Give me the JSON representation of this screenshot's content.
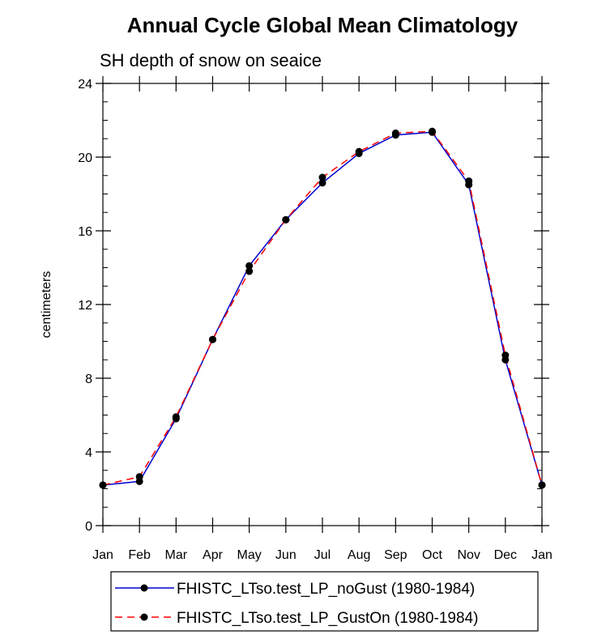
{
  "chart_data": {
    "type": "line",
    "title": "Annual Cycle Global Mean Climatology",
    "subtitle": "SH depth of snow on seaice",
    "xlabel": "",
    "ylabel": "centimeters",
    "categories": [
      "Jan",
      "Feb",
      "Mar",
      "Apr",
      "May",
      "Jun",
      "Jul",
      "Aug",
      "Sep",
      "Oct",
      "Nov",
      "Dec",
      "Jan"
    ],
    "ylim": [
      0,
      24
    ],
    "yticks": [
      "0",
      "4",
      "8",
      "12",
      "16",
      "20",
      "24"
    ],
    "legend_position": "bottom",
    "series": [
      {
        "name": "FHISTC_LTso.test_LP_noGust (1980-1984)",
        "color": "#0000cc",
        "style": "solid",
        "values": [
          2.2,
          2.4,
          5.8,
          10.1,
          14.1,
          16.6,
          18.6,
          20.2,
          21.2,
          21.35,
          18.5,
          9.0,
          2.2
        ]
      },
      {
        "name": "FHISTC_LTso.test_LP_GustOn (1980-1984)",
        "color": "#ff0000",
        "style": "dashed",
        "values": [
          2.2,
          2.65,
          5.9,
          10.1,
          13.8,
          16.6,
          18.9,
          20.3,
          21.3,
          21.4,
          18.7,
          9.25,
          2.2
        ]
      }
    ]
  }
}
